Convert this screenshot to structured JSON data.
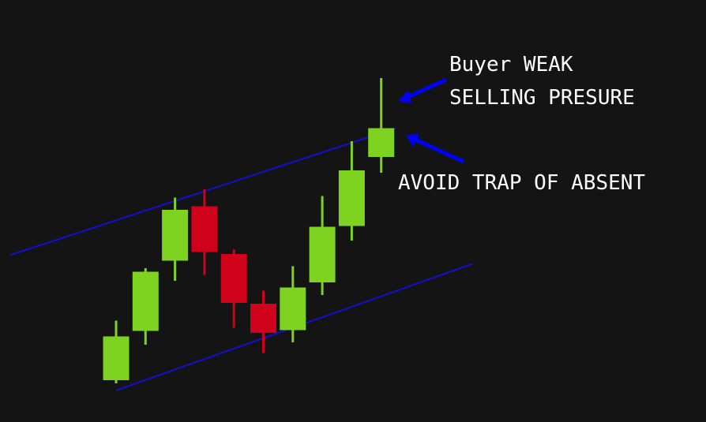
{
  "colors": {
    "background": "#141414",
    "bullish": "#7ed321",
    "bearish": "#d0021b",
    "channel": "#1010d0",
    "arrow": "#0000ff",
    "text": "#ffffff"
  },
  "chart_data": {
    "type": "candlestick",
    "title": "",
    "xlabel": "",
    "ylabel": "",
    "axes_visible": false,
    "grid": false,
    "ylim": [
      0,
      100
    ],
    "candles": [
      {
        "open": 11.6,
        "high": 26.7,
        "low": 10.8,
        "close": 22.7,
        "direction": "up"
      },
      {
        "open": 24.1,
        "high": 40.0,
        "low": 20.6,
        "close": 39.1,
        "direction": "up"
      },
      {
        "open": 41.9,
        "high": 57.9,
        "low": 36.8,
        "close": 54.8,
        "direction": "up"
      },
      {
        "open": 55.7,
        "high": 60.0,
        "low": 38.3,
        "close": 44.1,
        "direction": "down"
      },
      {
        "open": 43.6,
        "high": 44.7,
        "low": 24.9,
        "close": 31.2,
        "direction": "down"
      },
      {
        "open": 31.0,
        "high": 34.3,
        "low": 18.5,
        "close": 23.6,
        "direction": "down"
      },
      {
        "open": 24.3,
        "high": 40.5,
        "low": 21.2,
        "close": 35.1,
        "direction": "up"
      },
      {
        "open": 36.4,
        "high": 58.3,
        "low": 33.2,
        "close": 50.5,
        "direction": "up"
      },
      {
        "open": 50.7,
        "high": 72.2,
        "low": 47.0,
        "close": 64.8,
        "direction": "up"
      },
      {
        "open": 68.2,
        "high": 88.2,
        "low": 64.2,
        "close": 75.5,
        "direction": "up"
      }
    ],
    "trendlines": [
      {
        "name": "",
        "from": {
          "index": -3.6,
          "value": 43.3
        },
        "to": {
          "index": 9.5,
          "value": 75.5
        }
      },
      {
        "name": "",
        "from": {
          "index": 0,
          "value": 9.0
        },
        "to": {
          "index": 12.1,
          "value": 41.1
        }
      }
    ],
    "annotations": {
      "buyer_weak": "Buyer WEAK",
      "selling_presure": "SELLING PRESURE",
      "avoid_trap": "AVOID TRAP OF ABSENT"
    }
  }
}
